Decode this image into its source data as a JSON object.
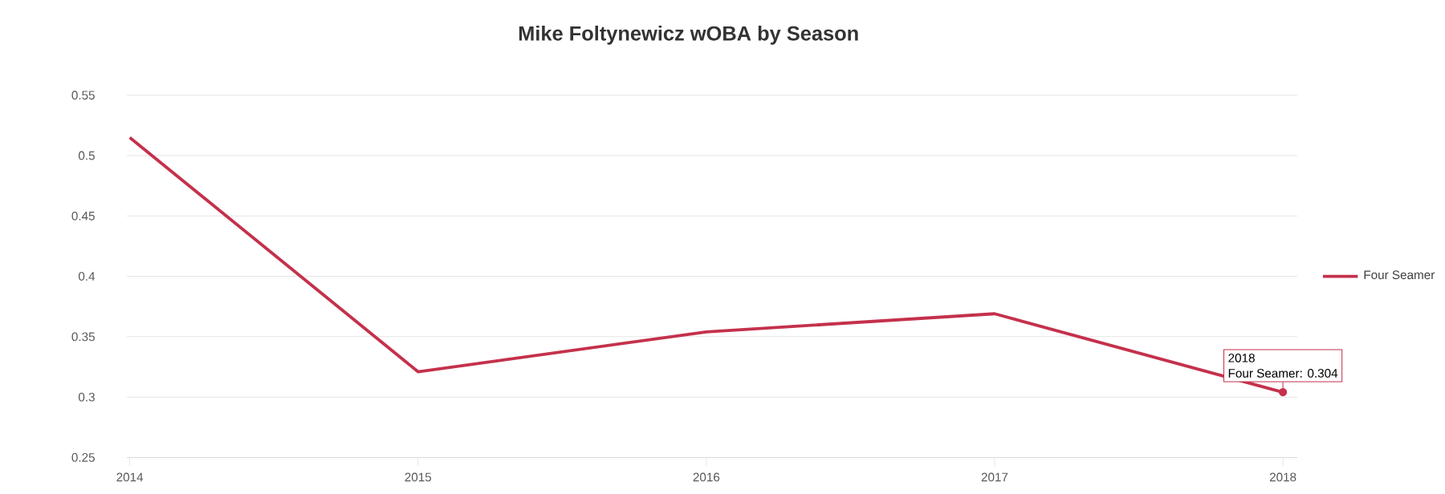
{
  "chart_data": {
    "type": "line",
    "title": "Mike Foltynewicz wOBA by Season",
    "categories": [
      "2014",
      "2015",
      "2016",
      "2017",
      "2018"
    ],
    "series": [
      {
        "name": "Four Seamer",
        "color": "#c4314b",
        "values": [
          0.515,
          0.321,
          0.354,
          0.369,
          0.304
        ]
      }
    ],
    "ylim": [
      0.25,
      0.55
    ],
    "yticks": [
      0.25,
      0.3,
      0.35,
      0.4,
      0.45,
      0.5,
      0.55
    ],
    "grid": "y",
    "legend": "right",
    "marker": "none",
    "line_style": "solid",
    "annotations": [
      "2018",
      {
        "text": "Four Seamer: 0.304",
        "x": "2018",
        "y": 0.304
      }
    ]
  }
}
